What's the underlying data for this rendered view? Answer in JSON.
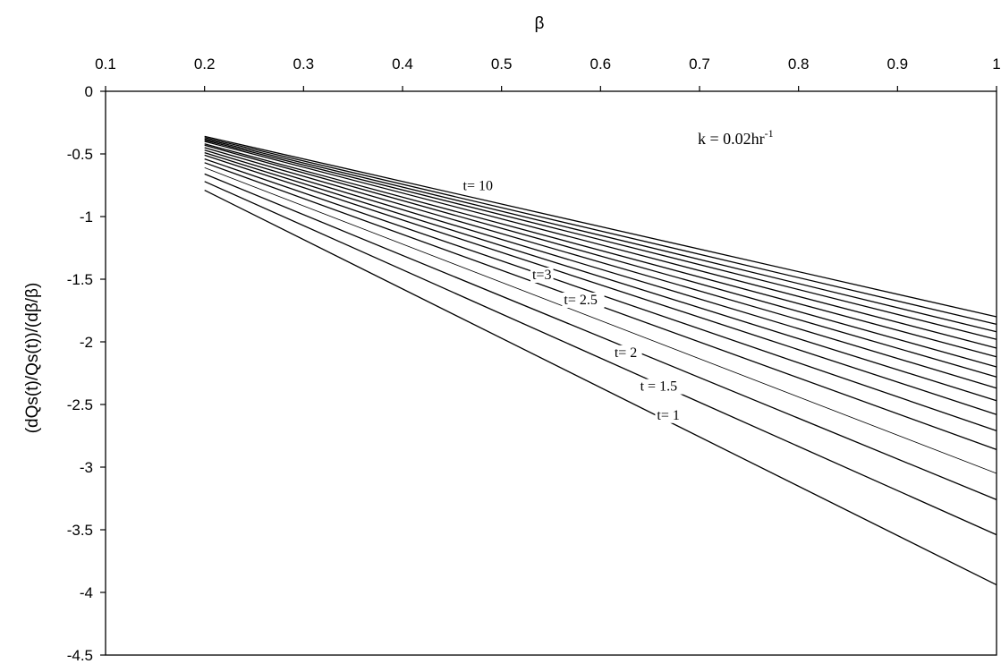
{
  "chart_data": {
    "type": "line",
    "title": "",
    "xlabel": "β",
    "ylabel": "(dQs(t)/Qs(t))/(dβ/β)",
    "xlim": [
      0.1,
      1
    ],
    "ylim": [
      -4.5,
      0
    ],
    "x_axis_position": "top",
    "x_ticks": [
      "0.1",
      "0.2",
      "0.3",
      "0.4",
      "0.5",
      "0.6",
      "0.7",
      "0.8",
      "0.9",
      "1"
    ],
    "y_ticks": [
      "0",
      "-0.5",
      "-1",
      "-1.5",
      "-2",
      "-2.5",
      "-3",
      "-3.5",
      "-4",
      "-4.5"
    ],
    "grid": false,
    "legend": "none",
    "line_color": "#000000",
    "annotation": {
      "text_main": "k = 0.02hr",
      "text_sup": "-1"
    },
    "series": [
      {
        "name": "t= 1",
        "x": [
          0.2,
          1.0
        ],
        "y": [
          -0.79,
          -3.94
        ]
      },
      {
        "name": "t = 1.5",
        "x": [
          0.2,
          1.0
        ],
        "y": [
          -0.72,
          -3.54
        ]
      },
      {
        "name": "",
        "x": [
          0.2,
          1.0
        ],
        "y": [
          -0.66,
          -3.26
        ]
      },
      {
        "name": "t= 2",
        "x": [
          0.2,
          1.0
        ],
        "y": [
          -0.61,
          -3.05
        ]
      },
      {
        "name": "",
        "x": [
          0.2,
          1.0
        ],
        "y": [
          -0.57,
          -2.86
        ]
      },
      {
        "name": "t= 2.5",
        "x": [
          0.2,
          1.0
        ],
        "y": [
          -0.54,
          -2.71
        ]
      },
      {
        "name": "",
        "x": [
          0.2,
          1.0
        ],
        "y": [
          -0.51,
          -2.58
        ]
      },
      {
        "name": "t=3",
        "x": [
          0.2,
          1.0
        ],
        "y": [
          -0.49,
          -2.47
        ]
      },
      {
        "name": "",
        "x": [
          0.2,
          1.0
        ],
        "y": [
          -0.47,
          -2.37
        ]
      },
      {
        "name": "",
        "x": [
          0.2,
          1.0
        ],
        "y": [
          -0.45,
          -2.28
        ]
      },
      {
        "name": "",
        "x": [
          0.2,
          1.0
        ],
        "y": [
          -0.43,
          -2.2
        ]
      },
      {
        "name": "",
        "x": [
          0.2,
          1.0
        ],
        "y": [
          -0.42,
          -2.12
        ]
      },
      {
        "name": "",
        "x": [
          0.2,
          1.0
        ],
        "y": [
          -0.4,
          -2.05
        ]
      },
      {
        "name": "",
        "x": [
          0.2,
          1.0
        ],
        "y": [
          -0.39,
          -1.98
        ]
      },
      {
        "name": "",
        "x": [
          0.2,
          1.0
        ],
        "y": [
          -0.38,
          -1.92
        ]
      },
      {
        "name": "",
        "x": [
          0.2,
          1.0
        ],
        "y": [
          -0.37,
          -1.86
        ]
      },
      {
        "name": "t= 10",
        "x": [
          0.2,
          1.0
        ],
        "y": [
          -0.36,
          -1.8
        ]
      }
    ],
    "line_labels": [
      {
        "text": "t= 10",
        "x": 0.461,
        "y": -0.79
      },
      {
        "text": "t=3",
        "x": 0.531,
        "y": -1.5
      },
      {
        "text": "t= 2.5",
        "x": 0.563,
        "y": -1.7
      },
      {
        "text": "t= 2",
        "x": 0.614,
        "y": -2.12
      },
      {
        "text": "t = 1.5",
        "x": 0.64,
        "y": -2.39
      },
      {
        "text": "t= 1",
        "x": 0.657,
        "y": -2.62
      }
    ]
  }
}
